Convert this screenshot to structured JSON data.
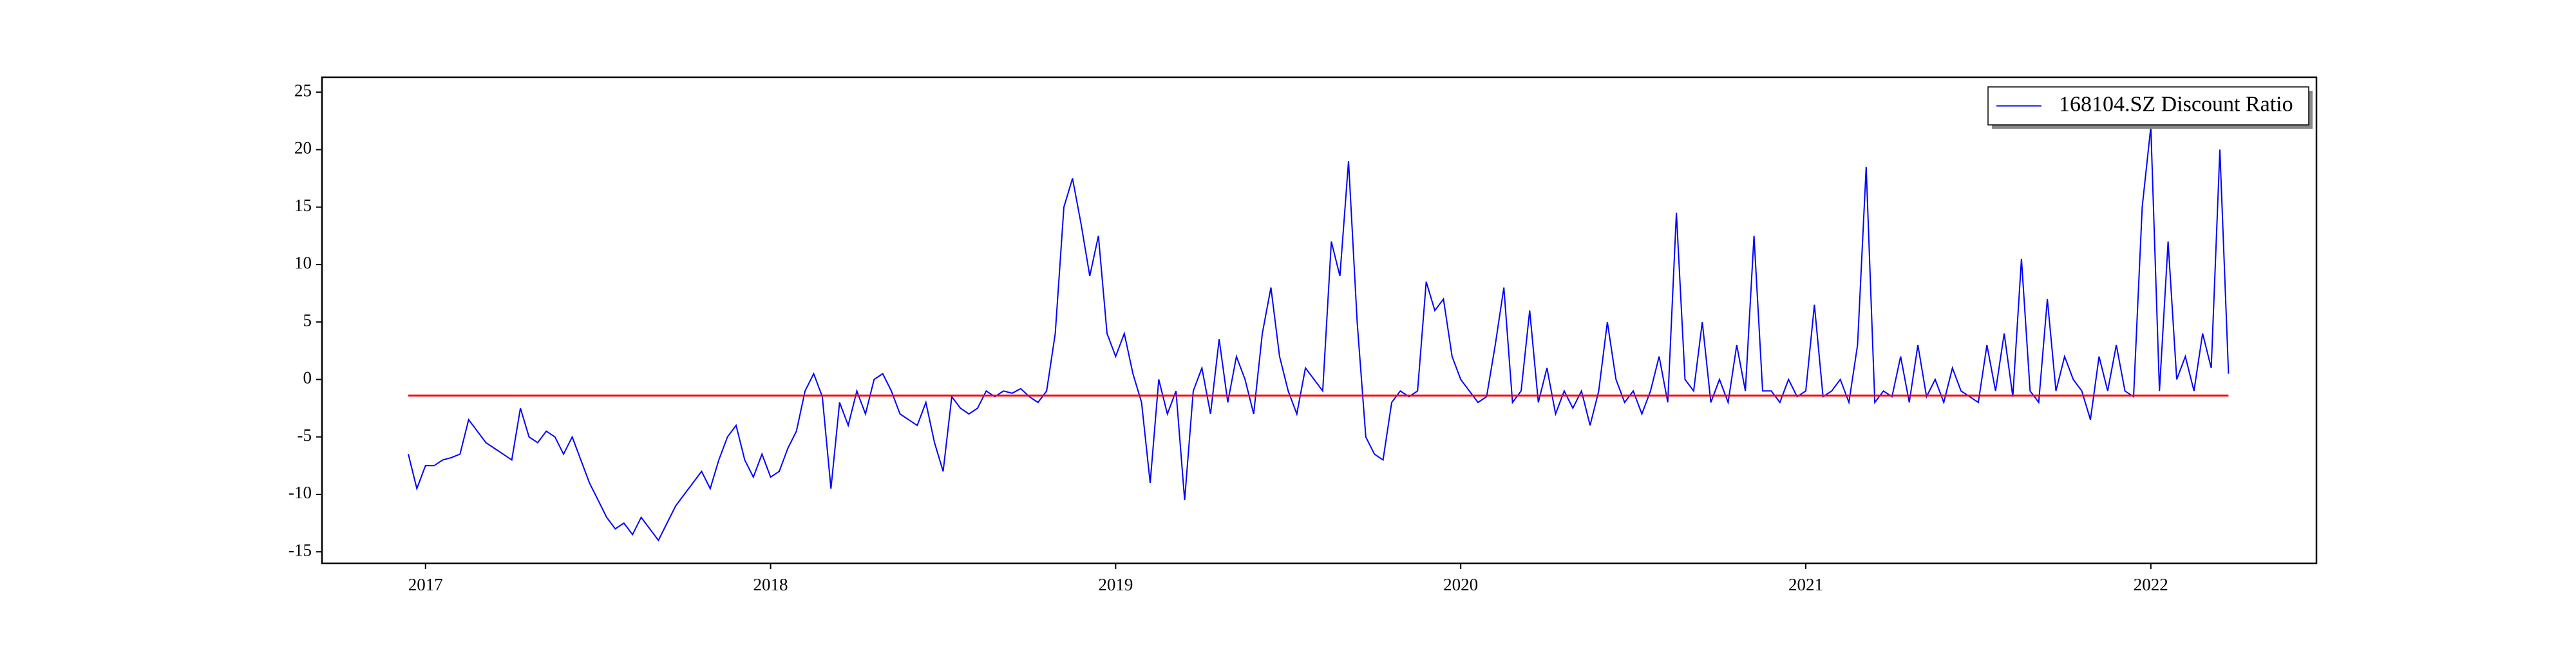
{
  "chart_data": {
    "type": "line",
    "x": [
      2016.95,
      2016.975,
      2017.0,
      2017.025,
      2017.05,
      2017.075,
      2017.1,
      2017.125,
      2017.15,
      2017.175,
      2017.2,
      2017.225,
      2017.25,
      2017.275,
      2017.3,
      2017.325,
      2017.35,
      2017.375,
      2017.4,
      2017.425,
      2017.45,
      2017.475,
      2017.5,
      2017.525,
      2017.55,
      2017.575,
      2017.6,
      2017.625,
      2017.65,
      2017.675,
      2017.7,
      2017.725,
      2017.75,
      2017.775,
      2017.8,
      2017.825,
      2017.85,
      2017.875,
      2017.9,
      2017.925,
      2017.95,
      2017.975,
      2018.0,
      2018.025,
      2018.05,
      2018.075,
      2018.1,
      2018.125,
      2018.15,
      2018.175,
      2018.2,
      2018.225,
      2018.25,
      2018.275,
      2018.3,
      2018.325,
      2018.35,
      2018.375,
      2018.4,
      2018.425,
      2018.45,
      2018.475,
      2018.5,
      2018.525,
      2018.55,
      2018.575,
      2018.6,
      2018.625,
      2018.65,
      2018.675,
      2018.7,
      2018.725,
      2018.75,
      2018.775,
      2018.8,
      2018.825,
      2018.85,
      2018.875,
      2018.9,
      2018.925,
      2018.95,
      2018.975,
      2019.0,
      2019.025,
      2019.05,
      2019.075,
      2019.1,
      2019.125,
      2019.15,
      2019.175,
      2019.2,
      2019.225,
      2019.25,
      2019.275,
      2019.3,
      2019.325,
      2019.35,
      2019.375,
      2019.4,
      2019.425,
      2019.45,
      2019.475,
      2019.5,
      2019.525,
      2019.55,
      2019.575,
      2019.6,
      2019.625,
      2019.65,
      2019.675,
      2019.7,
      2019.725,
      2019.75,
      2019.775,
      2019.8,
      2019.825,
      2019.85,
      2019.875,
      2019.9,
      2019.925,
      2019.95,
      2019.975,
      2020.0,
      2020.025,
      2020.05,
      2020.075,
      2020.1,
      2020.125,
      2020.15,
      2020.175,
      2020.2,
      2020.225,
      2020.25,
      2020.275,
      2020.3,
      2020.325,
      2020.35,
      2020.375,
      2020.4,
      2020.425,
      2020.45,
      2020.475,
      2020.5,
      2020.525,
      2020.55,
      2020.575,
      2020.6,
      2020.625,
      2020.65,
      2020.675,
      2020.7,
      2020.725,
      2020.75,
      2020.775,
      2020.8,
      2020.825,
      2020.85,
      2020.875,
      2020.9,
      2020.925,
      2020.95,
      2020.975,
      2021.0,
      2021.025,
      2021.05,
      2021.075,
      2021.1,
      2021.125,
      2021.15,
      2021.175,
      2021.2,
      2021.225,
      2021.25,
      2021.275,
      2021.3,
      2021.325,
      2021.35,
      2021.375,
      2021.4,
      2021.425,
      2021.45,
      2021.475,
      2021.5,
      2021.525,
      2021.55,
      2021.575,
      2021.6,
      2021.625,
      2021.65,
      2021.675,
      2021.7,
      2021.725,
      2021.75,
      2021.775,
      2021.8,
      2021.825,
      2021.85,
      2021.875,
      2021.9,
      2021.925,
      2021.95,
      2021.975,
      2022.0,
      2022.025,
      2022.05,
      2022.075,
      2022.1,
      2022.125,
      2022.15,
      2022.175,
      2022.2,
      2022.225
    ],
    "series": [
      {
        "name": "168104.SZ Discount Ratio",
        "color": "#0000ff",
        "values": [
          -6.5,
          -9.5,
          -7.5,
          -7.5,
          -7,
          -6.8,
          -6.5,
          -3.5,
          -4.5,
          -5.5,
          -6,
          -6.5,
          -7,
          -2.5,
          -5,
          -5.5,
          -4.5,
          -5,
          -6.5,
          -5,
          -7,
          -9,
          -10.5,
          -12,
          -13,
          -12.5,
          -13.5,
          -12,
          -13,
          -14,
          -12.5,
          -11,
          -10,
          -9,
          -8,
          -9.5,
          -7,
          -5,
          -4,
          -7,
          -8.5,
          -6.5,
          -8.5,
          -8,
          -6,
          -4.5,
          -1,
          0.5,
          -1.5,
          -9.5,
          -2,
          -4,
          -1,
          -3,
          0,
          0.5,
          -1,
          -3,
          -3.5,
          -4,
          -2,
          -5.5,
          -8,
          -1.5,
          -2.5,
          -3,
          -2.5,
          -1,
          -1.5,
          -1,
          -1.2,
          -0.8,
          -1.5,
          -2,
          -1,
          4,
          15,
          17.5,
          13.5,
          9,
          12.5,
          4,
          2,
          4,
          0.5,
          -2,
          -9,
          0,
          -3,
          -1,
          -10.5,
          -1,
          1,
          -3,
          3.5,
          -2,
          2,
          0,
          -3,
          4,
          8,
          2,
          -1,
          -3,
          1,
          0,
          -1,
          12,
          9,
          19,
          5,
          -5,
          -6.5,
          -7,
          -2,
          -1,
          -1.5,
          -1,
          8.5,
          6,
          7,
          2,
          0,
          -1,
          -2,
          -1.5,
          3,
          8,
          -2,
          -1,
          6,
          -2,
          1,
          -3,
          -1,
          -2.5,
          -1,
          -4,
          -1,
          5,
          0,
          -2,
          -1,
          -3,
          -1,
          2,
          -2,
          14.5,
          0,
          -1,
          5,
          -2,
          0,
          -2,
          3,
          -1,
          12.5,
          -1,
          -1,
          -2,
          0,
          -1.5,
          -1,
          6.5,
          -1.5,
          -1,
          0,
          -2,
          3,
          18.5,
          -2,
          -1,
          -1.5,
          2,
          -2,
          3,
          -1.5,
          0,
          -2,
          1,
          -1,
          -1.5,
          -2,
          3,
          -1,
          4,
          -1.5,
          10.5,
          -1,
          -2,
          7,
          -1,
          2,
          0,
          -1,
          -3.5,
          2,
          -1,
          3,
          -1,
          -1.5,
          15,
          22,
          -1,
          12,
          0,
          2,
          -1,
          4,
          1,
          20,
          0.5
        ]
      }
    ],
    "reference_line": {
      "y": -1.4,
      "color": "#ff0000"
    },
    "xlim": [
      2016.7,
      2022.48
    ],
    "xticks": [
      2017,
      2018,
      2019,
      2020,
      2021,
      2022
    ],
    "ylim": [
      -16,
      26.3
    ],
    "yticks": [
      -15,
      -10,
      -5,
      0,
      5,
      10,
      15,
      20,
      25
    ],
    "legend": "upper right"
  }
}
